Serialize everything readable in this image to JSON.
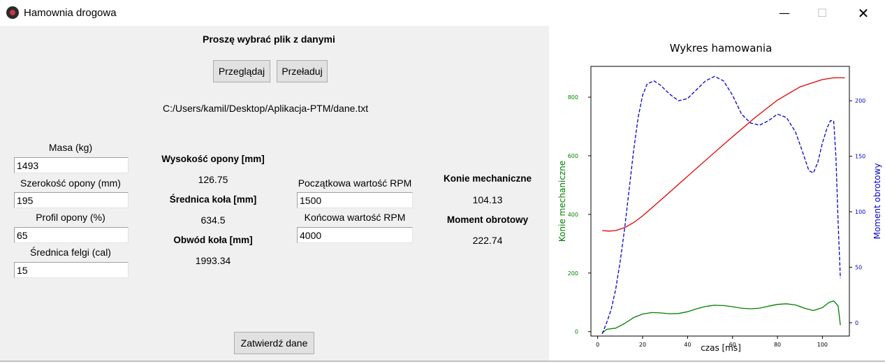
{
  "window": {
    "title": "Hamownia drogowa",
    "controls": {
      "minimize": "—",
      "maximize": "☐",
      "close": "✕"
    }
  },
  "file": {
    "prompt": "Proszę wybrać plik z danymi",
    "browse_label": "Przeglądaj",
    "reload_label": "Przeładuj",
    "path": "C:/Users/kamil/Desktop/Aplikacja-PTM/dane.txt"
  },
  "inputs": {
    "mass_label": "Masa (kg)",
    "mass_value": "1493",
    "tire_width_label": "Szerokość opony (mm)",
    "tire_width_value": "195",
    "tire_profile_label": "Profil opony (%)",
    "tire_profile_value": "65",
    "rim_label": "Średnica felgi (cal)",
    "rim_value": "15"
  },
  "computed": {
    "tire_height_label": "Wysokość opony [mm]",
    "tire_height_value": "126.75",
    "wheel_diameter_label": "Średnica koła [mm]",
    "wheel_diameter_value": "634.5",
    "wheel_circumference_label": "Obwód koła [mm]",
    "wheel_circumference_value": "1993.34"
  },
  "rpm": {
    "start_label": "Początkowa wartość RPM",
    "start_value": "1500",
    "end_label": "Końcowa wartość RPM",
    "end_value": "4000"
  },
  "results": {
    "hp_label": "Konie mechaniczne",
    "hp_value": "104.13",
    "torque_label": "Moment obrotowy",
    "torque_value": "222.74"
  },
  "submit_label": "Zatwierdź dane",
  "chart_data": {
    "type": "line",
    "title": "Wykres hamowania",
    "xlabel": "czas [ms]",
    "ylabel_left": "Konie mechaniczne",
    "ylabel_right": "Moment obrotowy",
    "xlim": [
      -3,
      112
    ],
    "ylim_left": [
      -15,
      905
    ],
    "ylim_right": [
      -12,
      231
    ],
    "x_ticks": [
      "0",
      "20",
      "40",
      "60",
      "80",
      "100"
    ],
    "y_ticks_left": [
      "0",
      "200",
      "400",
      "600",
      "800"
    ],
    "y_ticks_right": [
      "0",
      "50",
      "100",
      "150",
      "200"
    ],
    "grid": false,
    "colors": {
      "left_axis": "#008000",
      "right_axis": "#0000cc"
    },
    "series": [
      {
        "axis": "left",
        "color": "#008000",
        "style": "solid",
        "x": [
          2,
          4,
          8,
          12,
          16,
          20,
          24,
          28,
          32,
          36,
          40,
          44,
          48,
          52,
          56,
          60,
          64,
          68,
          72,
          76,
          80,
          84,
          88,
          92,
          96,
          100,
          103,
          105,
          107,
          108
        ],
        "y": [
          -5,
          8,
          12,
          28,
          48,
          60,
          65,
          64,
          61,
          62,
          68,
          78,
          86,
          90,
          89,
          85,
          80,
          78,
          80,
          87,
          93,
          95,
          91,
          80,
          72,
          82,
          100,
          105,
          88,
          22
        ]
      },
      {
        "axis": "left",
        "color": "#e00000",
        "style": "solid",
        "x": [
          2,
          5,
          8,
          12,
          16,
          20,
          30,
          40,
          50,
          60,
          70,
          80,
          90,
          100,
          105,
          110
        ],
        "y": [
          345,
          343,
          345,
          355,
          372,
          395,
          462,
          530,
          598,
          665,
          730,
          790,
          835,
          860,
          866,
          866
        ]
      },
      {
        "axis": "right",
        "color": "#0000cc",
        "style": "dashed",
        "x": [
          2,
          4,
          6,
          8,
          10,
          12,
          14,
          16,
          18,
          20,
          22,
          25,
          28,
          32,
          36,
          40,
          44,
          48,
          52,
          56,
          60,
          64,
          68,
          72,
          76,
          80,
          84,
          88,
          91,
          94,
          96,
          98,
          100,
          102,
          103.5,
          105,
          106,
          107,
          108
        ],
        "y": [
          -10,
          0,
          12,
          30,
          55,
          85,
          120,
          155,
          185,
          205,
          215,
          218,
          214,
          206,
          200,
          202,
          210,
          218,
          222,
          218,
          205,
          188,
          180,
          178,
          182,
          188,
          185,
          172,
          155,
          137,
          135,
          145,
          162,
          175,
          182,
          182,
          150,
          90,
          40
        ]
      }
    ]
  }
}
